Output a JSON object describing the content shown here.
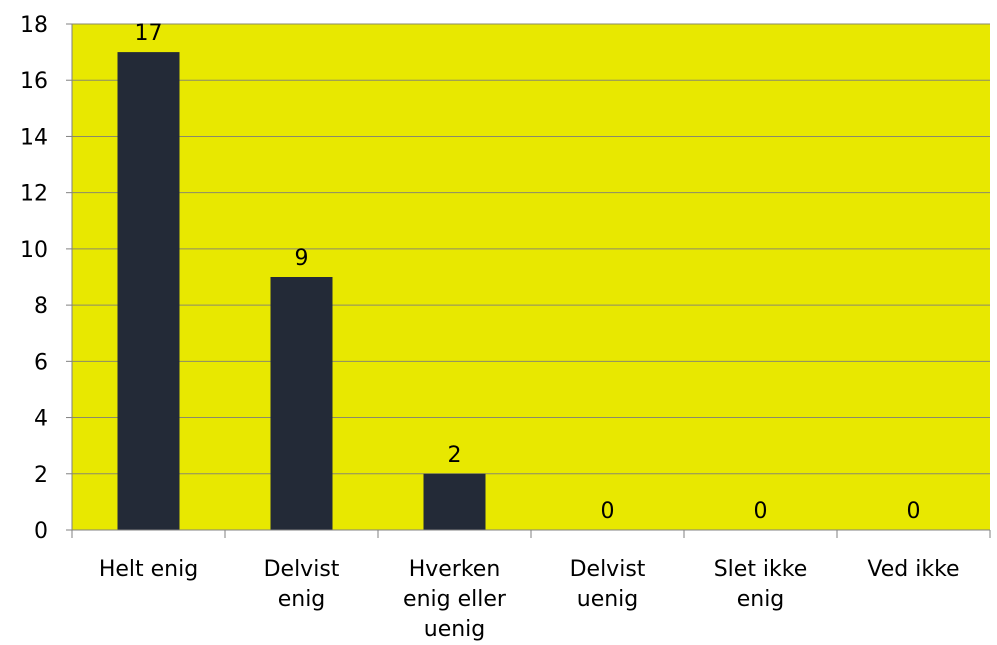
{
  "chart_data": {
    "type": "bar",
    "categories": [
      [
        "Helt enig"
      ],
      [
        "Delvist",
        "enig"
      ],
      [
        "Hverken",
        "enig eller",
        "uenig"
      ],
      [
        "Delvist",
        "uenig"
      ],
      [
        "Slet ikke",
        "enig"
      ],
      [
        "Ved ikke"
      ]
    ],
    "values": [
      17,
      9,
      2,
      0,
      0,
      0
    ],
    "ylim": [
      0,
      18
    ],
    "yticks": [
      0,
      2,
      4,
      6,
      8,
      10,
      12,
      14,
      16,
      18
    ],
    "grid": true,
    "legend": "none",
    "colors": {
      "plot_background": "#e8e800",
      "bar": "#232a37",
      "gridline": "#8a8a6a",
      "axis": "#808080",
      "text": "#000000"
    }
  }
}
